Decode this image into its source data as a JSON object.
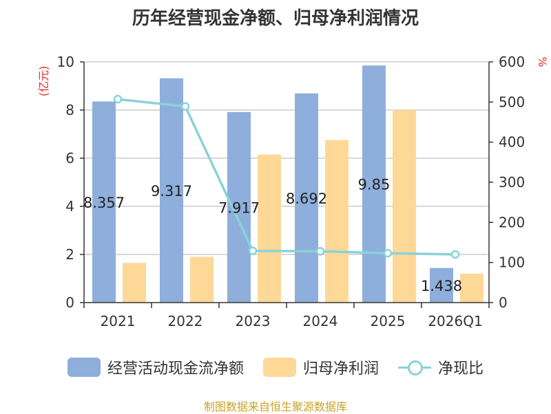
{
  "chart_data": {
    "type": "bar",
    "title": "历年经营现金净额、归母净利润情况",
    "categories": [
      "2021",
      "2022",
      "2023",
      "2024",
      "2025",
      "2026Q1"
    ],
    "series": [
      {
        "name": "经营活动现金流净额",
        "type": "bar",
        "axis": "left",
        "values": [
          8.357,
          9.317,
          7.917,
          8.692,
          9.85,
          1.438
        ],
        "labels": [
          "8.357",
          "9.317",
          "7.917",
          "8.692",
          "9.85",
          "1.438"
        ]
      },
      {
        "name": "归母净利润",
        "type": "bar",
        "axis": "left",
        "values": [
          1.65,
          1.9,
          6.15,
          6.75,
          8.0,
          1.2
        ]
      },
      {
        "name": "净现比",
        "type": "line",
        "axis": "right",
        "values": [
          507,
          489,
          129,
          128,
          123,
          120
        ]
      }
    ],
    "ylabel_left": "(亿元)",
    "ylabel_right": "%",
    "ylim_left": [
      0,
      10
    ],
    "ylim_right": [
      0,
      600
    ],
    "yticks_left": [
      "0",
      "2",
      "4",
      "6",
      "8",
      "10"
    ],
    "yticks_right": [
      "0",
      "100",
      "200",
      "300",
      "400",
      "500",
      "600"
    ],
    "grid": true,
    "legend": "bottom",
    "source": "制图数据来自恒生聚源数据库"
  },
  "colors": {
    "bar_cash": "#8eaedc",
    "bar_profit": "#fed897",
    "line_ratio": "#88d3d9",
    "axis_unit": "#e8281e"
  }
}
